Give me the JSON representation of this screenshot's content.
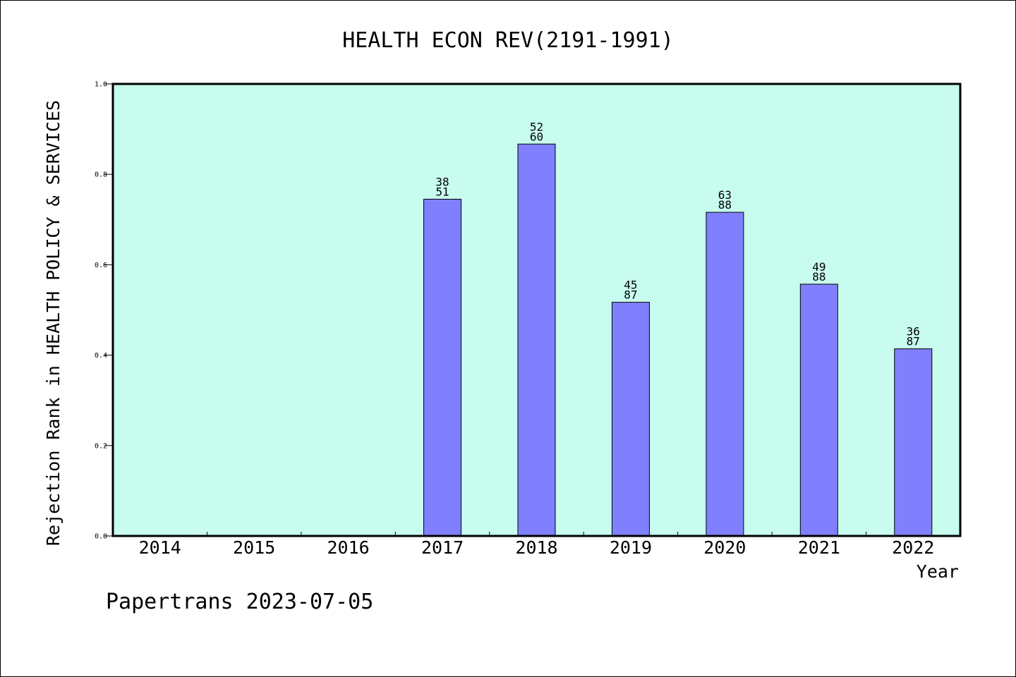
{
  "chart_data": {
    "type": "bar",
    "title": "HEALTH ECON REV(2191-1991)",
    "xlabel": "Year",
    "ylabel": "Rejection Rank in HEALTH POLICY & SERVICES",
    "categories": [
      "2014",
      "2015",
      "2016",
      "2017",
      "2018",
      "2019",
      "2020",
      "2021",
      "2022"
    ],
    "values": [
      null,
      null,
      null,
      0.745,
      0.867,
      0.517,
      0.716,
      0.557,
      0.414
    ],
    "rank_labels": [
      null,
      null,
      null,
      [
        "38",
        "51"
      ],
      [
        "52",
        "60"
      ],
      [
        "45",
        "87"
      ],
      [
        "63",
        "88"
      ],
      [
        "49",
        "88"
      ],
      [
        "36",
        "87"
      ]
    ],
    "ylim": [
      0,
      1.0
    ],
    "yticks": [
      "0.0",
      "0.2",
      "0.4",
      "0.6",
      "0.8",
      "1.0"
    ],
    "grid": false,
    "colors": {
      "plot_background": "#c8fcee",
      "bar_fill": "#8080ff",
      "bar_stroke": "#000000"
    }
  },
  "footer": "Papertrans 2023-07-05"
}
